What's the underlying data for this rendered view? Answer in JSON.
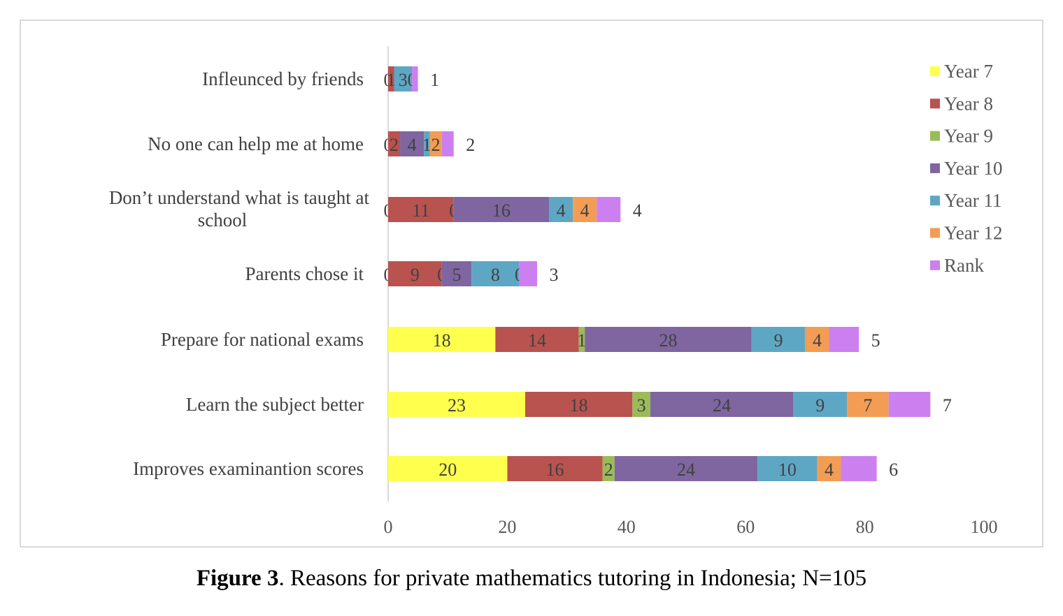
{
  "caption": {
    "label": "Figure 3",
    "text": ". Reasons for private mathematics tutoring in Indonesia; N=105"
  },
  "chart_data": {
    "type": "bar",
    "orientation": "horizontal",
    "stacked": true,
    "categories": [
      "Infleunced by friends",
      "No one can help me at home",
      "Don’t understand what is taught at school",
      "Parents chose it",
      "Prepare for national exams",
      "Learn the subject better",
      "Improves examinantion scores"
    ],
    "series": [
      {
        "name": "Year 7",
        "color": "#ffff4d",
        "values": [
          0,
          0,
          0,
          0,
          18,
          23,
          20
        ]
      },
      {
        "name": "Year 8",
        "color": "#b9534f",
        "values": [
          1,
          2,
          11,
          9,
          14,
          18,
          16
        ]
      },
      {
        "name": "Year 9",
        "color": "#9bbb59",
        "values": [
          0,
          0,
          0,
          0,
          1,
          3,
          2
        ]
      },
      {
        "name": "Year 10",
        "color": "#7f66a0",
        "values": [
          0,
          4,
          16,
          5,
          28,
          24,
          24
        ]
      },
      {
        "name": "Year 11",
        "color": "#5ea7c4",
        "values": [
          3,
          1,
          4,
          8,
          9,
          9,
          10
        ]
      },
      {
        "name": "Year 12",
        "color": "#f29d53",
        "values": [
          0,
          2,
          4,
          0,
          4,
          7,
          4
        ]
      },
      {
        "name": "Rank",
        "color": "#cc80f0",
        "values": [
          1,
          2,
          4,
          3,
          5,
          7,
          6
        ]
      }
    ],
    "bar_labels": [
      [
        "0",
        "1",
        "",
        "",
        "3",
        "0",
        "1"
      ],
      [
        "0",
        "2",
        "",
        "4",
        "1",
        "2",
        "2"
      ],
      [
        "0",
        "11",
        "0",
        "16",
        "4",
        "4",
        "4"
      ],
      [
        "0",
        "9",
        "0",
        "5",
        "8",
        "0",
        "3"
      ],
      [
        "18",
        "14",
        "1",
        "28",
        "9",
        "4",
        "5"
      ],
      [
        "23",
        "18",
        "3",
        "24",
        "9",
        "7",
        "7"
      ],
      [
        "20",
        "16",
        "2",
        "24",
        "10",
        "4",
        "6"
      ]
    ],
    "xlim": [
      0,
      100
    ],
    "xticks": [
      0,
      20,
      40,
      60,
      80,
      100
    ],
    "xlabel": "",
    "ylabel": "",
    "legend_position": "right",
    "grid": false
  }
}
